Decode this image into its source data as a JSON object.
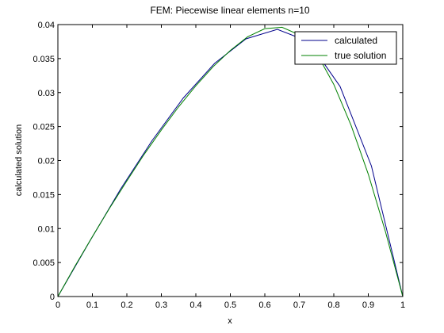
{
  "colors": {
    "background": "#ffffff",
    "axes": "#000000",
    "calculated": "#00008b",
    "true_solution": "#008000"
  },
  "chart_data": {
    "type": "line",
    "title": "FEM: Piecewise linear elements n=10",
    "xlabel": "x",
    "ylabel": "calculated solution",
    "xlim": [
      0,
      1
    ],
    "ylim": [
      0,
      0.04
    ],
    "xticks": [
      "0",
      "0.1",
      "0.2",
      "0.3",
      "0.4",
      "0.5",
      "0.6",
      "0.7",
      "0.8",
      "0.9",
      "1"
    ],
    "yticks": [
      "0",
      "0.005",
      "0.01",
      "0.015",
      "0.02",
      "0.025",
      "0.03",
      "0.035",
      "0.04"
    ],
    "grid": false,
    "legend_position": "top-right",
    "series": [
      {
        "name": "calculated",
        "x": [
          0,
          0.0909,
          0.1818,
          0.2727,
          0.3636,
          0.4545,
          0.5455,
          0.6364,
          0.7273,
          0.8182,
          0.9091,
          1.0
        ],
        "y": [
          0,
          0.008,
          0.0158,
          0.0229,
          0.0292,
          0.0343,
          0.0379,
          0.0393,
          0.0375,
          0.0309,
          0.0192,
          0
        ]
      },
      {
        "name": "true solution",
        "x": [
          0,
          0.05,
          0.1,
          0.15,
          0.2,
          0.25,
          0.3,
          0.35,
          0.4,
          0.45,
          0.5,
          0.55,
          0.6,
          0.65,
          0.7,
          0.75,
          0.8,
          0.85,
          0.9,
          0.95,
          1.0
        ],
        "y": [
          0,
          0.0045,
          0.0088,
          0.013,
          0.017,
          0.0209,
          0.0245,
          0.0279,
          0.031,
          0.0338,
          0.0362,
          0.0382,
          0.0394,
          0.0396,
          0.0385,
          0.0358,
          0.0312,
          0.0252,
          0.018,
          0.0095,
          0
        ]
      }
    ]
  }
}
